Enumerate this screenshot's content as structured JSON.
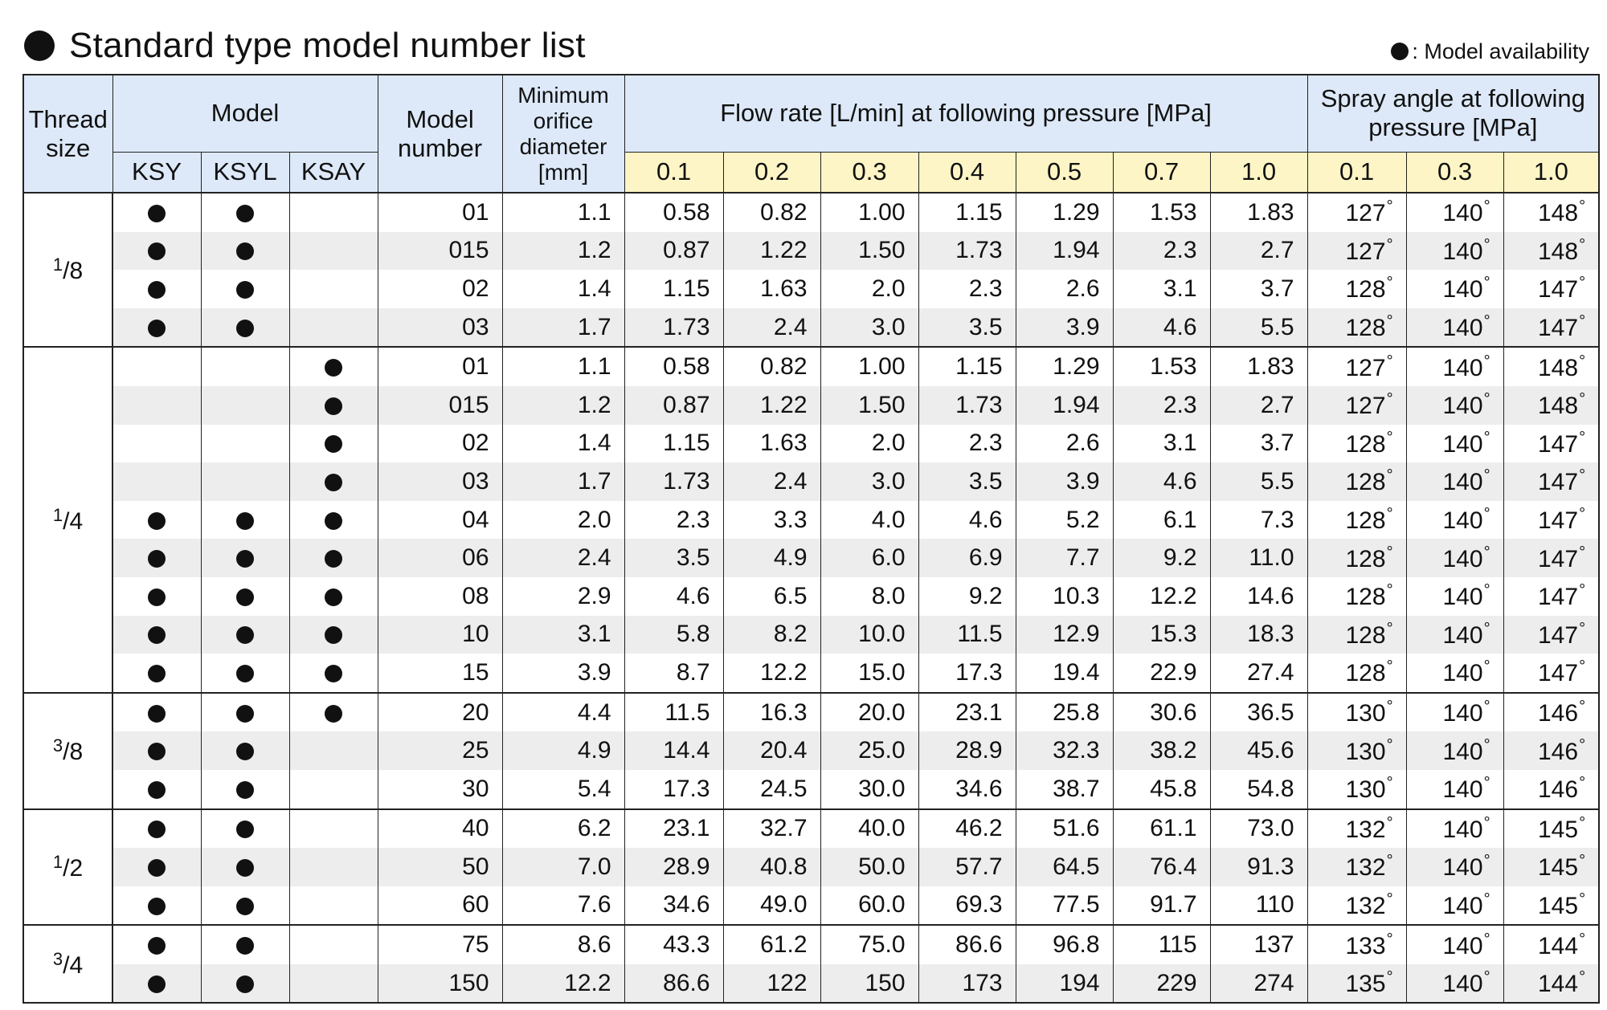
{
  "title": "Standard type model number list",
  "legend": ": Model availability",
  "header": {
    "thread_size": [
      "Thread",
      "size"
    ],
    "model": "Model",
    "models": [
      "KSY",
      "KSYL",
      "KSAY"
    ],
    "model_number": [
      "Model",
      "number"
    ],
    "orifice": [
      "Minimum",
      "orifice",
      "diameter",
      "[mm]"
    ],
    "flow_rate": "Flow rate [L/min] at following pressure [MPa]",
    "flow_pressures": [
      "0.1",
      "0.2",
      "0.3",
      "0.4",
      "0.5",
      "0.7",
      "1.0"
    ],
    "spray_angle": [
      "Spray angle at following",
      "pressure [MPa]"
    ],
    "angle_pressures": [
      "0.1",
      "0.3",
      "1.0"
    ]
  },
  "degree_symbol": "°",
  "groups": [
    {
      "thread": {
        "num": "1",
        "den": "8"
      },
      "rows": [
        {
          "ksy": true,
          "ksyl": true,
          "ksay": false,
          "model_number": "01",
          "orifice": "1.1",
          "flow": [
            "0.58",
            "0.82",
            "1.00",
            "1.15",
            "1.29",
            "1.53",
            "1.83"
          ],
          "angle": [
            "127",
            "140",
            "148"
          ]
        },
        {
          "ksy": true,
          "ksyl": true,
          "ksay": false,
          "model_number": "015",
          "orifice": "1.2",
          "flow": [
            "0.87",
            "1.22",
            "1.50",
            "1.73",
            "1.94",
            "2.3",
            "2.7"
          ],
          "angle": [
            "127",
            "140",
            "148"
          ]
        },
        {
          "ksy": true,
          "ksyl": true,
          "ksay": false,
          "model_number": "02",
          "orifice": "1.4",
          "flow": [
            "1.15",
            "1.63",
            "2.0",
            "2.3",
            "2.6",
            "3.1",
            "3.7"
          ],
          "angle": [
            "128",
            "140",
            "147"
          ]
        },
        {
          "ksy": true,
          "ksyl": true,
          "ksay": false,
          "model_number": "03",
          "orifice": "1.7",
          "flow": [
            "1.73",
            "2.4",
            "3.0",
            "3.5",
            "3.9",
            "4.6",
            "5.5"
          ],
          "angle": [
            "128",
            "140",
            "147"
          ]
        }
      ]
    },
    {
      "thread": {
        "num": "1",
        "den": "4"
      },
      "rows": [
        {
          "ksy": false,
          "ksyl": false,
          "ksay": true,
          "model_number": "01",
          "orifice": "1.1",
          "flow": [
            "0.58",
            "0.82",
            "1.00",
            "1.15",
            "1.29",
            "1.53",
            "1.83"
          ],
          "angle": [
            "127",
            "140",
            "148"
          ]
        },
        {
          "ksy": false,
          "ksyl": false,
          "ksay": true,
          "model_number": "015",
          "orifice": "1.2",
          "flow": [
            "0.87",
            "1.22",
            "1.50",
            "1.73",
            "1.94",
            "2.3",
            "2.7"
          ],
          "angle": [
            "127",
            "140",
            "148"
          ]
        },
        {
          "ksy": false,
          "ksyl": false,
          "ksay": true,
          "model_number": "02",
          "orifice": "1.4",
          "flow": [
            "1.15",
            "1.63",
            "2.0",
            "2.3",
            "2.6",
            "3.1",
            "3.7"
          ],
          "angle": [
            "128",
            "140",
            "147"
          ]
        },
        {
          "ksy": false,
          "ksyl": false,
          "ksay": true,
          "model_number": "03",
          "orifice": "1.7",
          "flow": [
            "1.73",
            "2.4",
            "3.0",
            "3.5",
            "3.9",
            "4.6",
            "5.5"
          ],
          "angle": [
            "128",
            "140",
            "147"
          ]
        },
        {
          "ksy": true,
          "ksyl": true,
          "ksay": true,
          "model_number": "04",
          "orifice": "2.0",
          "flow": [
            "2.3",
            "3.3",
            "4.0",
            "4.6",
            "5.2",
            "6.1",
            "7.3"
          ],
          "angle": [
            "128",
            "140",
            "147"
          ]
        },
        {
          "ksy": true,
          "ksyl": true,
          "ksay": true,
          "model_number": "06",
          "orifice": "2.4",
          "flow": [
            "3.5",
            "4.9",
            "6.0",
            "6.9",
            "7.7",
            "9.2",
            "11.0"
          ],
          "angle": [
            "128",
            "140",
            "147"
          ]
        },
        {
          "ksy": true,
          "ksyl": true,
          "ksay": true,
          "model_number": "08",
          "orifice": "2.9",
          "flow": [
            "4.6",
            "6.5",
            "8.0",
            "9.2",
            "10.3",
            "12.2",
            "14.6"
          ],
          "angle": [
            "128",
            "140",
            "147"
          ]
        },
        {
          "ksy": true,
          "ksyl": true,
          "ksay": true,
          "model_number": "10",
          "orifice": "3.1",
          "flow": [
            "5.8",
            "8.2",
            "10.0",
            "11.5",
            "12.9",
            "15.3",
            "18.3"
          ],
          "angle": [
            "128",
            "140",
            "147"
          ]
        },
        {
          "ksy": true,
          "ksyl": true,
          "ksay": true,
          "model_number": "15",
          "orifice": "3.9",
          "flow": [
            "8.7",
            "12.2",
            "15.0",
            "17.3",
            "19.4",
            "22.9",
            "27.4"
          ],
          "angle": [
            "128",
            "140",
            "147"
          ]
        }
      ]
    },
    {
      "thread": {
        "num": "3",
        "den": "8"
      },
      "rows": [
        {
          "ksy": true,
          "ksyl": true,
          "ksay": true,
          "model_number": "20",
          "orifice": "4.4",
          "flow": [
            "11.5",
            "16.3",
            "20.0",
            "23.1",
            "25.8",
            "30.6",
            "36.5"
          ],
          "angle": [
            "130",
            "140",
            "146"
          ]
        },
        {
          "ksy": true,
          "ksyl": true,
          "ksay": false,
          "model_number": "25",
          "orifice": "4.9",
          "flow": [
            "14.4",
            "20.4",
            "25.0",
            "28.9",
            "32.3",
            "38.2",
            "45.6"
          ],
          "angle": [
            "130",
            "140",
            "146"
          ]
        },
        {
          "ksy": true,
          "ksyl": true,
          "ksay": false,
          "model_number": "30",
          "orifice": "5.4",
          "flow": [
            "17.3",
            "24.5",
            "30.0",
            "34.6",
            "38.7",
            "45.8",
            "54.8"
          ],
          "angle": [
            "130",
            "140",
            "146"
          ]
        }
      ]
    },
    {
      "thread": {
        "num": "1",
        "den": "2"
      },
      "rows": [
        {
          "ksy": true,
          "ksyl": true,
          "ksay": false,
          "model_number": "40",
          "orifice": "6.2",
          "flow": [
            "23.1",
            "32.7",
            "40.0",
            "46.2",
            "51.6",
            "61.1",
            "73.0"
          ],
          "angle": [
            "132",
            "140",
            "145"
          ]
        },
        {
          "ksy": true,
          "ksyl": true,
          "ksay": false,
          "model_number": "50",
          "orifice": "7.0",
          "flow": [
            "28.9",
            "40.8",
            "50.0",
            "57.7",
            "64.5",
            "76.4",
            "91.3"
          ],
          "angle": [
            "132",
            "140",
            "145"
          ]
        },
        {
          "ksy": true,
          "ksyl": true,
          "ksay": false,
          "model_number": "60",
          "orifice": "7.6",
          "flow": [
            "34.6",
            "49.0",
            "60.0",
            "69.3",
            "77.5",
            "91.7",
            "110"
          ],
          "angle": [
            "132",
            "140",
            "145"
          ]
        }
      ]
    },
    {
      "thread": {
        "num": "3",
        "den": "4"
      },
      "rows": [
        {
          "ksy": true,
          "ksyl": true,
          "ksay": false,
          "model_number": "75",
          "orifice": "8.6",
          "flow": [
            "43.3",
            "61.2",
            "75.0",
            "86.6",
            "96.8",
            "115",
            "137"
          ],
          "angle": [
            "133",
            "140",
            "144"
          ]
        },
        {
          "ksy": true,
          "ksyl": true,
          "ksay": false,
          "model_number": "150",
          "orifice": "12.2",
          "flow": [
            "86.6",
            "122",
            "150",
            "173",
            "194",
            "229",
            "274"
          ],
          "angle": [
            "135",
            "140",
            "144"
          ]
        }
      ]
    }
  ]
}
